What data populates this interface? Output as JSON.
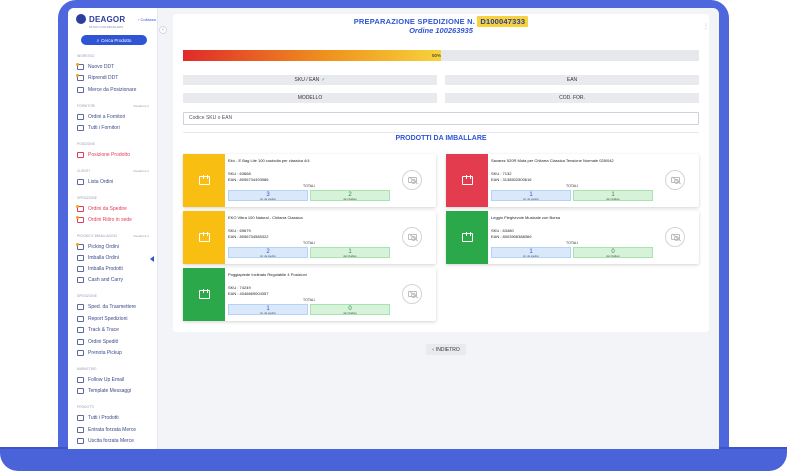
{
  "brand": {
    "name": "DEAGOR",
    "tagline": "MUSIC FOR RETAILERS"
  },
  "sidebar": {
    "collapse_label": "Collassa",
    "search_button": "Cerca Prodotto",
    "sections": [
      {
        "title": "Ingresso",
        "note": ""
      },
      {
        "title": "Fornitori",
        "note": "Visualizza 2"
      },
      {
        "title": "Posizione",
        "note": ""
      },
      {
        "title": "Clienti",
        "note": "Visualizza 2"
      },
      {
        "title": "Spedizione",
        "note": ""
      },
      {
        "title": "Picking e imballaggio",
        "note": "Visualizza 2"
      },
      {
        "title": "Spedizione",
        "note": ""
      },
      {
        "title": "Marketing",
        "note": ""
      },
      {
        "title": "Prodotti",
        "note": ""
      }
    ],
    "items": [
      {
        "label": "Nuovo DDT",
        "icon": "document-icon"
      },
      {
        "label": "Riprendi DDT",
        "icon": "document-icon"
      },
      {
        "label": "Merce da Posizionare",
        "icon": "boxes-icon"
      },
      {
        "label": "Ordini a Fornitori",
        "icon": "truck-icon"
      },
      {
        "label": "Tutti i Fornitori",
        "icon": "users-icon"
      },
      {
        "label": "Posizione Prodotto",
        "icon": "location-icon"
      },
      {
        "label": "Lista Ordini",
        "icon": "list-icon"
      },
      {
        "label": "Ordini da Spedire",
        "icon": "ship-icon"
      },
      {
        "label": "Ordini Ritiro in sede",
        "icon": "store-icon"
      },
      {
        "label": "Picking Ordini",
        "icon": "cart-icon"
      },
      {
        "label": "Imballa Ordini",
        "icon": "package-icon"
      },
      {
        "label": "Imballa Prodotti",
        "icon": "package-icon"
      },
      {
        "label": "Cash and Carry",
        "icon": "cash-icon"
      },
      {
        "label": "Sped. da Trasmettere",
        "icon": "send-icon"
      },
      {
        "label": "Report Spedizioni",
        "icon": "report-icon"
      },
      {
        "label": "Track & Trace",
        "icon": "track-icon"
      },
      {
        "label": "Ordini Spediti",
        "icon": "shipped-icon"
      },
      {
        "label": "Prenota Pickup",
        "icon": "pickup-icon"
      },
      {
        "label": "Follow Up Email",
        "icon": "mail-icon"
      },
      {
        "label": "Template Messaggi",
        "icon": "template-icon"
      },
      {
        "label": "Tutti i Prodotti",
        "icon": "products-icon"
      },
      {
        "label": "Entrata forzata Merce",
        "icon": "enter-icon"
      },
      {
        "label": "Uscita forzata Merce",
        "icon": "exit-icon"
      }
    ]
  },
  "header": {
    "title_prefix": "PREPARAZIONE SPEDIZIONE N.",
    "shipment_code": "D100047333",
    "order_label": "Ordine 100263935"
  },
  "progress": {
    "percent": 50,
    "label": "50%"
  },
  "columns": {
    "sku_ean": "SKU / EAN",
    "ean": "EAN",
    "modello": "MODELLO",
    "cod_for": "COD. FOR."
  },
  "code_input": {
    "placeholder": "Codice SKU o EAN"
  },
  "products_title": "PRODOTTI DA IMBALLARE",
  "labels": {
    "totali": "TOTALI",
    "da_spedire": "tot. da spedire",
    "da_imballare": "da imballare"
  },
  "products": [
    {
      "name": "Ekò - E Bag Lite 100 custodia per classica 4/4",
      "sku": "SKU : 63668",
      "ean": "EAN : 8056734493986",
      "da_spedire": "3",
      "da_imballare": "2",
      "tile_color": "yellow"
    },
    {
      "name": "Savarez 520R Muta per Chitarra Classica Tensione Normale 028/042",
      "sku": "SKU : 7132",
      "ean": "EAN : 3138502500616",
      "da_spedire": "1",
      "da_imballare": "1",
      "tile_color": "red"
    },
    {
      "name": "EKO Vibra 100 Natural - Chitarra Classica",
      "sku": "SKU : 69679",
      "ean": "EAN : 8056734585322",
      "da_spedire": "2",
      "da_imballare": "1",
      "tile_color": "yellow"
    },
    {
      "name": "Leggio Pieghevole Musicale con Borsa",
      "sku": "SKU : 63480",
      "ean": "EAN : 8003906388369",
      "da_spedire": "1",
      "da_imballare": "0",
      "tile_color": "green"
    },
    {
      "name": "Poggiapiede Inclinato Regolabile 4 Posizioni",
      "sku": "SKU : 74249",
      "ean": "EAN : 4046669004357",
      "da_spedire": "1",
      "da_imballare": "0",
      "tile_color": "green"
    }
  ],
  "back_button": "INDIETRO",
  "colors": {
    "accent": "#2f55d4",
    "highlight": "#f6d33b",
    "device": "#4e67dc"
  }
}
